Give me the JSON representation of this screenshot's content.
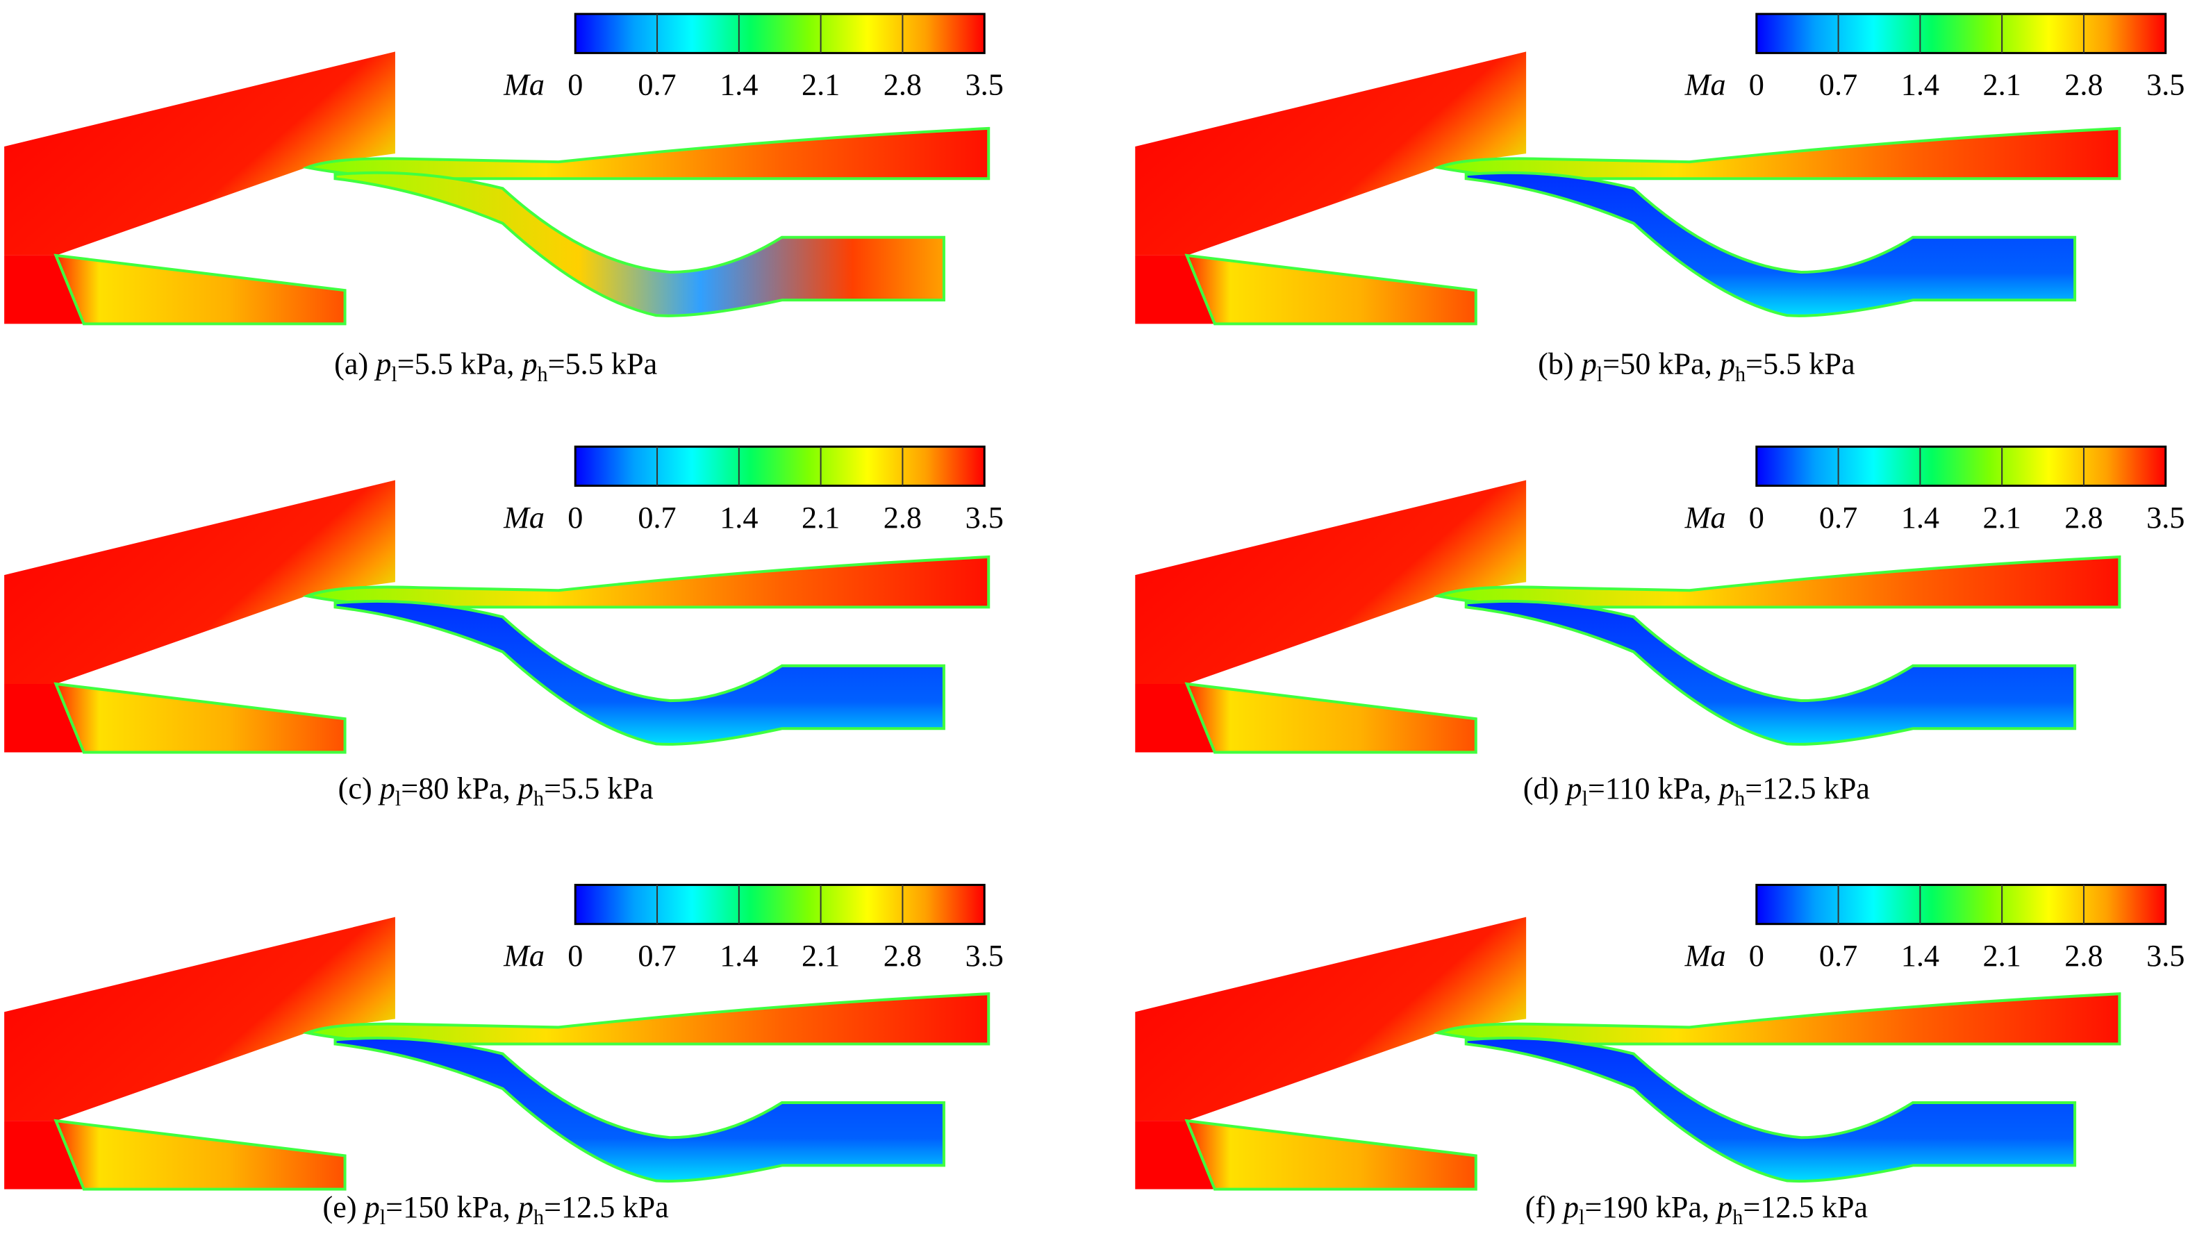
{
  "colormap": [
    "#0000ff",
    "#00a0ff",
    "#00ffff",
    "#00ff60",
    "#80ff00",
    "#ffff00",
    "#ffa000",
    "#ff0000"
  ],
  "panels": [
    {
      "colorbar": {
        "label": "Ma",
        "ticks": [
          0,
          0.7,
          1.4,
          2.1,
          2.8,
          3.5
        ]
      },
      "caption": [
        {
          "text": "(a) "
        },
        {
          "text": "p",
          "style": "italic"
        },
        {
          "text": "l",
          "style": "sub"
        },
        {
          "text": "=5.5 kPa, "
        },
        {
          "text": "p",
          "style": "italic"
        },
        {
          "text": "h",
          "style": "sub"
        },
        {
          "text": "=5.5 kPa"
        }
      ]
    },
    {
      "colorbar": {
        "label": "Ma",
        "ticks": [
          0,
          0.7,
          1.4,
          2.1,
          2.8,
          3.5
        ]
      },
      "caption": [
        {
          "text": "(b) "
        },
        {
          "text": "p",
          "style": "italic"
        },
        {
          "text": "l",
          "style": "sub"
        },
        {
          "text": "=50 kPa, "
        },
        {
          "text": "p",
          "style": "italic"
        },
        {
          "text": "h",
          "style": "sub"
        },
        {
          "text": "=5.5 kPa"
        }
      ]
    },
    {
      "colorbar": {
        "label": "Ma",
        "ticks": [
          0,
          0.7,
          1.4,
          2.1,
          2.8,
          3.5
        ]
      },
      "caption": [
        {
          "text": "(c) "
        },
        {
          "text": "p",
          "style": "italic"
        },
        {
          "text": "l",
          "style": "sub"
        },
        {
          "text": "=80 kPa, "
        },
        {
          "text": "p",
          "style": "italic"
        },
        {
          "text": "h",
          "style": "sub"
        },
        {
          "text": "=5.5 kPa"
        }
      ]
    },
    {
      "colorbar": {
        "label": "Ma",
        "ticks": [
          0,
          0.7,
          1.4,
          2.1,
          2.8,
          3.5
        ]
      },
      "caption": [
        {
          "text": "(d) "
        },
        {
          "text": "p",
          "style": "italic"
        },
        {
          "text": "l",
          "style": "sub"
        },
        {
          "text": "=110 kPa, "
        },
        {
          "text": "p",
          "style": "italic"
        },
        {
          "text": "h",
          "style": "sub"
        },
        {
          "text": "=12.5 kPa"
        }
      ]
    },
    {
      "colorbar": {
        "label": "Ma",
        "ticks": [
          0,
          0.7,
          1.4,
          2.1,
          2.8,
          3.5
        ]
      },
      "caption": [
        {
          "text": "(e) "
        },
        {
          "text": "p",
          "style": "italic"
        },
        {
          "text": "l",
          "style": "sub"
        },
        {
          "text": "=150 kPa, "
        },
        {
          "text": "p",
          "style": "italic"
        },
        {
          "text": "h",
          "style": "sub"
        },
        {
          "text": "=12.5 kPa"
        }
      ]
    },
    {
      "colorbar": {
        "label": "Ma",
        "ticks": [
          0,
          0.7,
          1.4,
          2.1,
          2.8,
          3.5
        ]
      },
      "caption": [
        {
          "text": "(f) "
        },
        {
          "text": "p",
          "style": "italic"
        },
        {
          "text": "l",
          "style": "sub"
        },
        {
          "text": "=190 kPa, "
        },
        {
          "text": "p",
          "style": "italic"
        },
        {
          "text": "h",
          "style": "sub"
        },
        {
          "text": "=12.5 kPa"
        }
      ]
    }
  ]
}
